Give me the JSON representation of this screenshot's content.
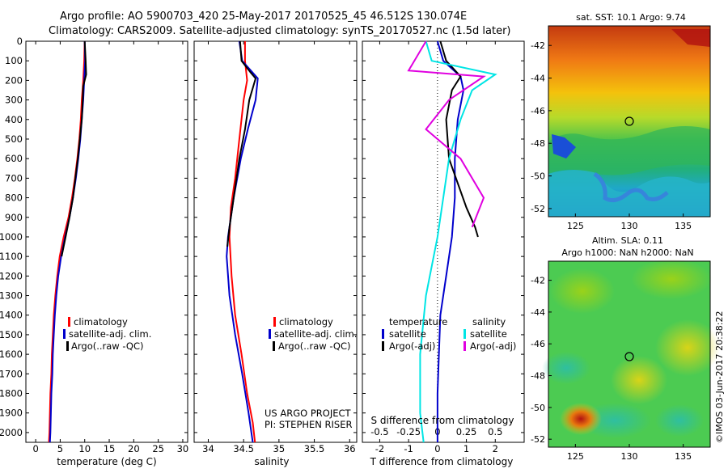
{
  "header": {
    "line1": "Argo profile: AO 5900703_420 25-May-2017 20170525_45 46.512S 130.074E",
    "line2": "Climatology: CARS2009. Satellite-adjusted climatology: synTS_20170527.nc (1.5d later)"
  },
  "credit": {
    "project": "US ARGO PROJECT",
    "pi": "PI: STEPHEN RISER"
  },
  "stamp": "©IMOS 03-Jun-2017 20:38:22",
  "colors": {
    "climatology": "#ff0000",
    "satellite": "#0000cc",
    "argo": "#000000",
    "satellite_sal": "#00e5e5",
    "argo_sal": "#e000e0"
  },
  "chart_data": [
    {
      "type": "line",
      "xlabel": "temperature (deg C)",
      "ylabel": "",
      "xlim": [
        -2,
        31
      ],
      "ylim": [
        2050,
        0
      ],
      "xticks": [
        "0",
        "5",
        "10",
        "15",
        "20",
        "25",
        "30"
      ],
      "yticks": [
        "0",
        "100",
        "200",
        "300",
        "400",
        "500",
        "600",
        "700",
        "800",
        "900",
        "1000",
        "1100",
        "1200",
        "1300",
        "1400",
        "1500",
        "1600",
        "1700",
        "1800",
        "1900",
        "2000"
      ],
      "legend": [
        "climatology",
        "satellite-adj. clim.",
        "Argo(..raw -QC)"
      ],
      "series": [
        {
          "name": "climatology",
          "color": "#ff0000",
          "points": [
            [
              10,
              0
            ],
            [
              9.9,
              100
            ],
            [
              9.7,
              200
            ],
            [
              9.4,
              300
            ],
            [
              9.2,
              400
            ],
            [
              8.9,
              500
            ],
            [
              8.5,
              600
            ],
            [
              8.0,
              700
            ],
            [
              7.4,
              800
            ],
            [
              6.7,
              900
            ],
            [
              5.7,
              1000
            ],
            [
              4.9,
              1100
            ],
            [
              4.4,
              1200
            ],
            [
              4.0,
              1300
            ],
            [
              3.7,
              1400
            ],
            [
              3.5,
              1500
            ],
            [
              3.3,
              1600
            ],
            [
              3.2,
              1700
            ],
            [
              3.0,
              1800
            ],
            [
              2.9,
              1900
            ],
            [
              2.8,
              2000
            ],
            [
              2.7,
              2050
            ]
          ]
        },
        {
          "name": "satellite-adj. clim.",
          "color": "#0000cc",
          "points": [
            [
              10,
              0
            ],
            [
              10.1,
              100
            ],
            [
              9.9,
              200
            ],
            [
              9.7,
              300
            ],
            [
              9.4,
              400
            ],
            [
              9.1,
              500
            ],
            [
              8.7,
              600
            ],
            [
              8.2,
              700
            ],
            [
              7.6,
              800
            ],
            [
              6.9,
              900
            ],
            [
              6.0,
              1000
            ],
            [
              5.2,
              1100
            ],
            [
              4.6,
              1200
            ],
            [
              4.2,
              1300
            ],
            [
              3.9,
              1400
            ],
            [
              3.7,
              1500
            ],
            [
              3.5,
              1600
            ],
            [
              3.4,
              1700
            ],
            [
              3.2,
              1800
            ],
            [
              3.1,
              1900
            ],
            [
              3.0,
              2000
            ],
            [
              2.9,
              2050
            ]
          ]
        },
        {
          "name": "Argo(..raw -QC)",
          "color": "#000000",
          "points": [
            [
              10,
              0
            ],
            [
              10.2,
              100
            ],
            [
              10.3,
              170
            ],
            [
              9.7,
              230
            ],
            [
              9.6,
              300
            ],
            [
              9.4,
              400
            ],
            [
              9.0,
              500
            ],
            [
              8.6,
              600
            ],
            [
              8.1,
              700
            ],
            [
              7.6,
              800
            ],
            [
              6.9,
              900
            ],
            [
              6.1,
              1000
            ],
            [
              5.3,
              1100
            ]
          ]
        }
      ]
    },
    {
      "type": "line",
      "xlabel": "salinity",
      "ylabel": "",
      "xlim": [
        33.8,
        36.1
      ],
      "ylim": [
        2050,
        0
      ],
      "xticks": [
        "34",
        "34.5",
        "35",
        "35.5",
        "36"
      ],
      "legend": [
        "climatology",
        "satellite-adj. clim.",
        "Argo(..raw -QC)"
      ],
      "series": [
        {
          "name": "climatology",
          "color": "#ff0000",
          "points": [
            [
              34.52,
              0
            ],
            [
              34.52,
              100
            ],
            [
              34.55,
              200
            ],
            [
              34.5,
              300
            ],
            [
              34.44,
              500
            ],
            [
              34.38,
              700
            ],
            [
              34.32,
              850
            ],
            [
              34.3,
              1000
            ],
            [
              34.33,
              1200
            ],
            [
              34.38,
              1400
            ],
            [
              34.47,
              1600
            ],
            [
              34.55,
              1800
            ],
            [
              34.63,
              1950
            ],
            [
              34.66,
              2050
            ]
          ]
        },
        {
          "name": "satellite-adj. clim.",
          "color": "#0000cc",
          "points": [
            [
              34.44,
              0
            ],
            [
              34.48,
              100
            ],
            [
              34.7,
              190
            ],
            [
              34.67,
              300
            ],
            [
              34.56,
              450
            ],
            [
              34.46,
              600
            ],
            [
              34.36,
              800
            ],
            [
              34.28,
              1000
            ],
            [
              34.26,
              1100
            ],
            [
              34.3,
              1300
            ],
            [
              34.38,
              1500
            ],
            [
              34.48,
              1700
            ],
            [
              34.57,
              1900
            ],
            [
              34.63,
              2050
            ]
          ]
        },
        {
          "name": "Argo(..raw -QC)",
          "color": "#000000",
          "points": [
            [
              34.45,
              0
            ],
            [
              34.47,
              100
            ],
            [
              34.6,
              160
            ],
            [
              34.67,
              190
            ],
            [
              34.58,
              300
            ],
            [
              34.52,
              450
            ],
            [
              34.44,
              600
            ],
            [
              34.36,
              800
            ],
            [
              34.3,
              950
            ],
            [
              34.27,
              1050
            ]
          ]
        }
      ]
    },
    {
      "type": "line",
      "xlabel": "T difference from climatology",
      "xlabel2": "S difference from climatology",
      "xlim": [
        -2.6,
        3.0
      ],
      "ylim": [
        2050,
        0
      ],
      "xticks": [
        "-2",
        "-1",
        "0",
        "1",
        "2"
      ],
      "xticks_top": [
        "-0.5",
        "-0.25",
        "0",
        "0.25",
        "0.5"
      ],
      "legend_heads": [
        "temperature",
        "salinity"
      ],
      "legend_left": [
        "satellite",
        "Argo(-adj)"
      ],
      "legend_right": [
        "satellite",
        "Argo(-adj)"
      ],
      "series": [
        {
          "name": "temperature satellite",
          "color": "#0000cc",
          "points": [
            [
              0.0,
              0
            ],
            [
              0.2,
              100
            ],
            [
              0.8,
              180
            ],
            [
              0.9,
              250
            ],
            [
              0.7,
              400
            ],
            [
              0.6,
              600
            ],
            [
              0.6,
              800
            ],
            [
              0.5,
              1000
            ],
            [
              0.3,
              1200
            ],
            [
              0.1,
              1400
            ],
            [
              0.05,
              1600
            ],
            [
              0.0,
              1800
            ],
            [
              0.0,
              2050
            ]
          ]
        },
        {
          "name": "temperature Argo(-adj)",
          "color": "#000000",
          "points": [
            [
              0.1,
              0
            ],
            [
              0.3,
              100
            ],
            [
              0.8,
              180
            ],
            [
              0.5,
              250
            ],
            [
              0.3,
              400
            ],
            [
              0.4,
              600
            ],
            [
              1.0,
              850
            ],
            [
              1.3,
              950
            ],
            [
              1.4,
              1000
            ]
          ]
        },
        {
          "name": "salinity satellite",
          "color": "#00e5e5",
          "points": [
            [
              -0.1,
              0
            ],
            [
              -0.05,
              100
            ],
            [
              0.5,
              170
            ],
            [
              0.3,
              250
            ],
            [
              0.2,
              400
            ],
            [
              0.1,
              600
            ],
            [
              0.05,
              800
            ],
            [
              0.0,
              1000
            ],
            [
              -0.1,
              1300
            ],
            [
              -0.15,
              1600
            ],
            [
              -0.15,
              1900
            ],
            [
              -0.12,
              2050
            ]
          ]
        },
        {
          "name": "salinity Argo(-adj)",
          "color": "#e000e0",
          "points": [
            [
              -0.1,
              0
            ],
            [
              -0.25,
              150
            ],
            [
              0.4,
              180
            ],
            [
              0.1,
              300
            ],
            [
              -0.1,
              450
            ],
            [
              0.2,
              600
            ],
            [
              0.4,
              800
            ],
            [
              0.3,
              950
            ]
          ]
        }
      ]
    },
    {
      "type": "heatmap",
      "title": "sat. SST: 10.1  Argo: 9.74",
      "xticks": [
        "125",
        "130",
        "135"
      ],
      "yticks": [
        "-42",
        "-44",
        "-46",
        "-48",
        "-50",
        "-52"
      ],
      "xlim": [
        122.5,
        137.5
      ],
      "ylim": [
        -52.5,
        -40.8
      ],
      "marker": [
        130.07,
        -46.51
      ]
    },
    {
      "type": "heatmap",
      "title": "Altim. SLA: 0.11",
      "subtitle": "Argo h1000: NaN h2000: NaN",
      "xticks": [
        "125",
        "130",
        "135"
      ],
      "yticks": [
        "-42",
        "-44",
        "-46",
        "-48",
        "-50",
        "-52"
      ],
      "xlim": [
        122.5,
        137.5
      ],
      "ylim": [
        -52.5,
        -40.8
      ],
      "marker": [
        130.07,
        -46.51
      ]
    }
  ]
}
